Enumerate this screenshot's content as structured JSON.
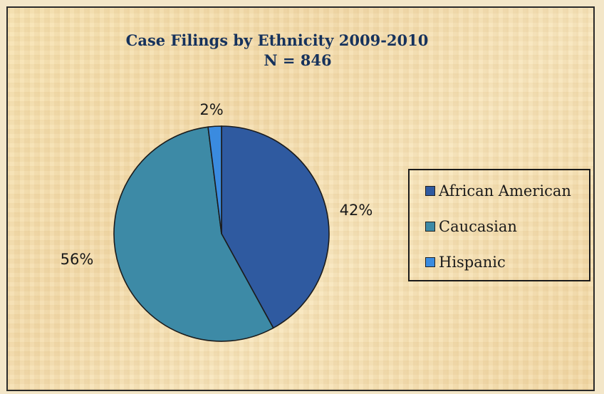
{
  "chart_data": {
    "type": "pie",
    "title": "Case Filings by Ethnicity 2009-2010",
    "subtitle": "N = 846",
    "categories": [
      "African American",
      "Caucasian",
      "Hispanic"
    ],
    "values": [
      42,
      56,
      2
    ],
    "labels": [
      "42%",
      "56%",
      "2%"
    ],
    "colors": [
      "#2f5aa0",
      "#3d8aa6",
      "#3a8be0"
    ],
    "legend_position": "right",
    "start_angle_deg": 0,
    "direction": "clockwise"
  }
}
